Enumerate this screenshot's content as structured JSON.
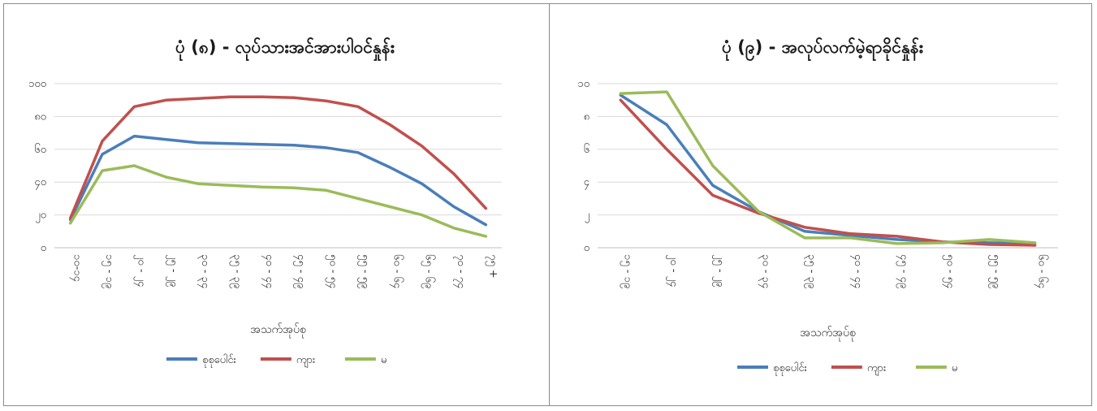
{
  "chart_data": [
    {
      "type": "line",
      "title": "ပုံ (၈) - လုပ်သားအင်အားပါဝင်နှုန်း",
      "xlabel": "အသက်အုပ်စု",
      "ylabel": "",
      "ylim": [
        0,
        100
      ],
      "yticks": [
        "၀",
        "၂၀",
        "၄၀",
        "၆၀",
        "၈၀",
        "၁၀၀"
      ],
      "ytick_values": [
        0,
        20,
        40,
        60,
        80,
        100
      ],
      "categories": [
        "၁၀-၁၄",
        "၁၅ - ၁၉",
        "၂၀ - ၂၄",
        "၂၅ - ၂၉",
        "၃၀ - ၃၄",
        "၃၅ - ၃၉",
        "၄၀ - ၄၄",
        "၄၅ - ၄၉",
        "၅၀ - ၅၄",
        "၅၅ - ၅၉",
        "၆၀ - ၆၄",
        "၆၅ - ၆၉",
        "၇၀ - ၇၄",
        "၇၅ +"
      ],
      "series": [
        {
          "name": "စုစုပေါင်း",
          "color": "#4a7ebb",
          "values": [
            17,
            57,
            68,
            66,
            64,
            63.5,
            63,
            62.5,
            61,
            58,
            49,
            39,
            25,
            14
          ]
        },
        {
          "name": "ကျား",
          "color": "#c0504d",
          "values": [
            18,
            65,
            86,
            90,
            91,
            92,
            92,
            91.5,
            89.5,
            86,
            75,
            62,
            45,
            24
          ]
        },
        {
          "name": "မ",
          "color": "#9bbb59",
          "values": [
            15,
            47,
            50,
            43,
            39,
            38,
            37,
            36.5,
            35,
            30,
            25,
            20,
            12,
            7
          ]
        }
      ],
      "grid": true,
      "legend": "bottom"
    },
    {
      "type": "line",
      "title": "ပုံ (၉) - အလုပ်လက်မဲ့ရာခိုင်နှုန်း",
      "xlabel": "အသက်အုပ်စု",
      "ylabel": "",
      "ylim": [
        0,
        10
      ],
      "yticks": [
        "၀",
        "၂",
        "၄",
        "၆",
        "၈",
        "၁၀"
      ],
      "ytick_values": [
        0,
        2,
        4,
        6,
        8,
        10
      ],
      "categories": [
        "၁၅ - ၁၉",
        "၂၀ - ၂၄",
        "၂၅ - ၂၉",
        "၃၀ - ၃၄",
        "၃၅ - ၃၉",
        "၄၀ - ၄၄",
        "၄၅ - ၄၉",
        "၅၀ - ၅၄",
        "၅၅ - ၅၉",
        "၆၀ - ၆၄"
      ],
      "series": [
        {
          "name": "စုစုပေါင်း",
          "color": "#4a7ebb",
          "values": [
            9.3,
            7.5,
            3.8,
            2.2,
            1.0,
            0.75,
            0.5,
            0.35,
            0.3,
            0.25
          ]
        },
        {
          "name": "ကျား",
          "color": "#c0504d",
          "values": [
            9.0,
            6.0,
            3.2,
            2.1,
            1.25,
            0.85,
            0.7,
            0.35,
            0.2,
            0.15
          ]
        },
        {
          "name": "မ",
          "color": "#9bbb59",
          "values": [
            9.4,
            9.5,
            5.0,
            2.2,
            0.6,
            0.6,
            0.25,
            0.3,
            0.5,
            0.3
          ]
        }
      ],
      "grid": true,
      "legend": "bottom"
    }
  ]
}
